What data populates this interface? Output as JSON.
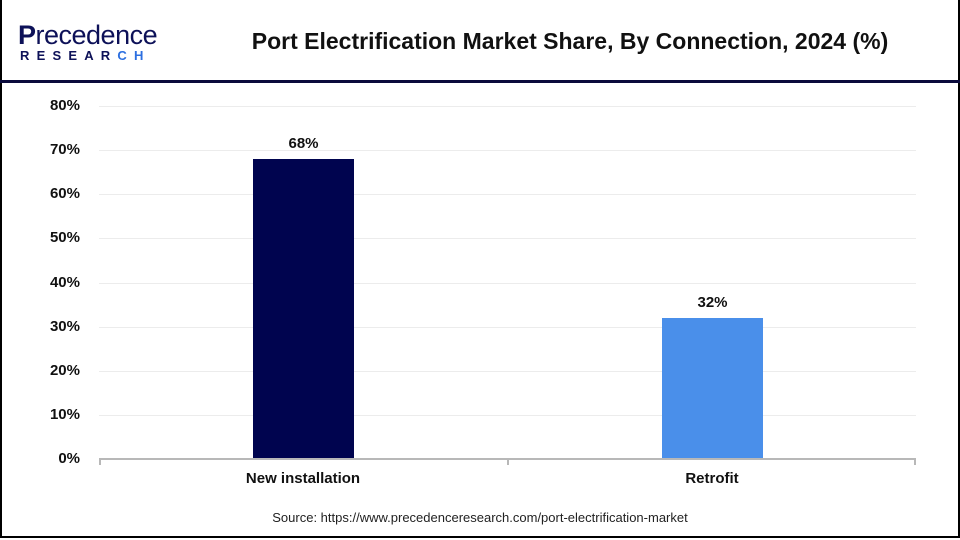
{
  "header": {
    "logo_top_first": "P",
    "logo_top_rest": "recedence",
    "logo_bottom_main": "RESEAR",
    "logo_bottom_hl": "CH",
    "title": "Port Electrification Market Share, By Connection, 2024 (%)"
  },
  "colors": {
    "new_installation": "#00044f",
    "retrofit": "#4a8fea",
    "divider": "#0a0a3c"
  },
  "chart_data": {
    "type": "bar",
    "title": "Port Electrification Market Share, By Connection, 2024 (%)",
    "categories": [
      "New installation",
      "Retrofit"
    ],
    "values": [
      68,
      32
    ],
    "value_labels": [
      "68%",
      "32%"
    ],
    "xlabel": "",
    "ylabel": "",
    "ylim": [
      0,
      80
    ],
    "yticks": [
      "0%",
      "10%",
      "20%",
      "30%",
      "40%",
      "50%",
      "60%",
      "70%",
      "80%"
    ],
    "grid": true,
    "legend": "none"
  },
  "footer": {
    "source": "Source: https://www.precedenceresearch.com/port-electrification-market"
  }
}
